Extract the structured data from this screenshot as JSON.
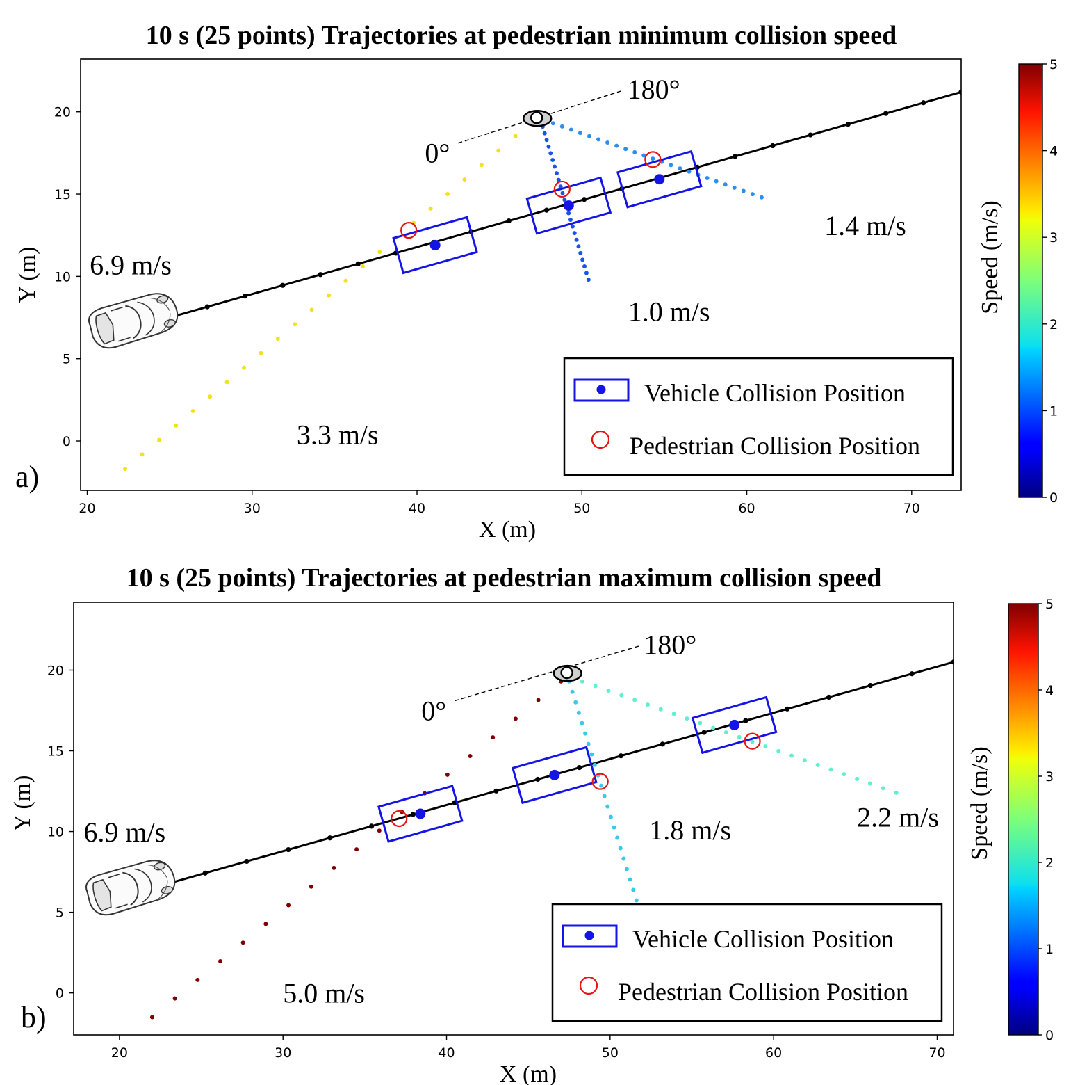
{
  "chart_data": [
    {
      "type": "scatter",
      "panel_label": "a)",
      "title": "10 s (25 points) Trajectories at pedestrian minimum collision speed",
      "xlabel": "X (m)",
      "ylabel": "Y (m)",
      "xlim": [
        19.6,
        73.0
      ],
      "ylim": [
        -3.0,
        23.2
      ],
      "xticks": [
        20,
        30,
        40,
        50,
        60,
        70
      ],
      "yticks": [
        0,
        5,
        10,
        15,
        20
      ],
      "colorbar": {
        "label": "Speed (m/s)",
        "min": 0,
        "max": 5,
        "ticks": [
          0,
          1,
          2,
          3,
          4,
          5
        ]
      },
      "vehicle": {
        "speed_label": "6.9 m/s",
        "start": [
          25.0,
          7.5
        ],
        "end": [
          73.0,
          21.2
        ],
        "n_points": 22
      },
      "pedestrian_origin": [
        47.3,
        19.6
      ],
      "angle_labels": {
        "left": "0°",
        "right": "180°"
      },
      "angle_line": {
        "left": [
          42.5,
          18.1
        ],
        "right": [
          52.5,
          21.3
        ]
      },
      "trajectories": [
        {
          "speed": 3.3,
          "label": "3.3 m/s",
          "color": "#f2e21c",
          "start": [
            22.3,
            -1.7
          ],
          "end": [
            47.0,
            19.4
          ],
          "n_points": 25,
          "label_pos": [
            32.7,
            -0.2
          ]
        },
        {
          "speed": 1.0,
          "label": "1.0 m/s",
          "color": "#1d52e6",
          "start": [
            50.4,
            9.8
          ],
          "end": [
            47.5,
            19.5
          ],
          "n_points": 25,
          "label_pos": [
            52.8,
            7.3
          ]
        },
        {
          "speed": 1.4,
          "label": "1.4 m/s",
          "color": "#2a8ff0",
          "start": [
            60.9,
            14.8
          ],
          "end": [
            47.7,
            19.5
          ],
          "n_points": 25,
          "label_pos": [
            64.7,
            12.5
          ]
        }
      ],
      "vehicle_collisions": [
        [
          41.1,
          11.9
        ],
        [
          49.2,
          14.3
        ],
        [
          54.7,
          15.9
        ]
      ],
      "pedestrian_collisions": [
        [
          39.5,
          12.8
        ],
        [
          48.8,
          15.3
        ],
        [
          54.3,
          17.1
        ]
      ],
      "legend": {
        "vehicle": "Vehicle Collision Position",
        "pedestrian": "Pedestrian Collision Position",
        "placement": "lower-right"
      }
    },
    {
      "type": "scatter",
      "panel_label": "b)",
      "title": "10 s (25 points) Trajectories at pedestrian maximum collision speed",
      "xlabel": "X (m)",
      "ylabel": "Y (m)",
      "xlim": [
        17.2,
        71.0
      ],
      "ylim": [
        -2.6,
        24.2
      ],
      "xticks": [
        20,
        30,
        40,
        50,
        60,
        70
      ],
      "yticks": [
        0,
        5,
        10,
        15,
        20
      ],
      "colorbar": {
        "label": "Speed (m/s)",
        "min": 0,
        "max": 5,
        "ticks": [
          0,
          1,
          2,
          3,
          4,
          5
        ]
      },
      "vehicle": {
        "speed_label": "6.9 m/s",
        "start": [
          22.7,
          6.7
        ],
        "end": [
          71.0,
          20.5
        ],
        "n_points": 20
      },
      "pedestrian_origin": [
        47.4,
        19.8
      ],
      "angle_labels": {
        "left": "0°",
        "right": "180°"
      },
      "angle_line": {
        "left": [
          40.5,
          18.1
        ],
        "right": [
          51.8,
          21.5
        ]
      },
      "trajectories": [
        {
          "speed": 5.0,
          "label": "5.0 m/s",
          "color": "#800000",
          "start": [
            22.0,
            -1.5
          ],
          "end": [
            47.0,
            19.3
          ],
          "n_points": 19,
          "label_pos": [
            30.0,
            -0.6
          ]
        },
        {
          "speed": 1.8,
          "label": "1.8 m/s",
          "color": "#3cc8ec",
          "start": [
            52.2,
            3.8
          ],
          "end": [
            47.5,
            19.3
          ],
          "n_points": 25,
          "label_pos": [
            52.4,
            9.5
          ]
        },
        {
          "speed": 2.2,
          "label": "2.2 m/s",
          "color": "#5ef0d0",
          "start": [
            67.5,
            12.4
          ],
          "end": [
            48.3,
            19.3
          ],
          "n_points": 25,
          "label_pos": [
            65.1,
            10.3
          ]
        }
      ],
      "vehicle_collisions": [
        [
          38.4,
          11.1
        ],
        [
          46.6,
          13.5
        ],
        [
          57.6,
          16.6
        ]
      ],
      "pedestrian_collisions": [
        [
          37.1,
          10.8
        ],
        [
          49.4,
          13.1
        ],
        [
          58.7,
          15.6
        ]
      ],
      "legend": {
        "vehicle": "Vehicle Collision Position",
        "pedestrian": "Pedestrian Collision Position",
        "placement": "lower-right"
      }
    }
  ]
}
